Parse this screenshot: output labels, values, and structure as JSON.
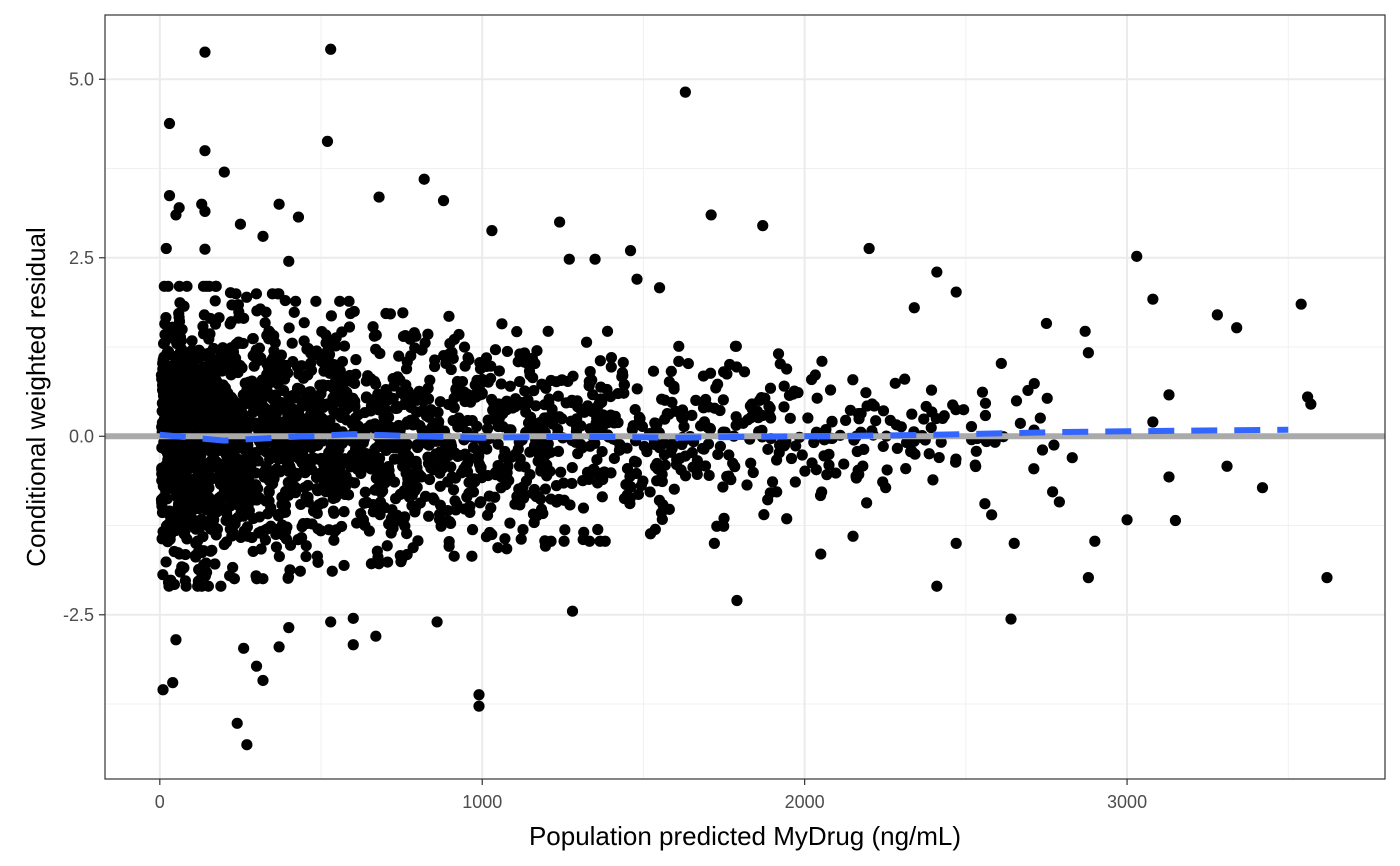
{
  "chart_data": {
    "type": "scatter",
    "title": "",
    "xlabel": "Population predicted MyDrug (ng/mL)",
    "ylabel": "Conditional weighted residual",
    "xlim": [
      -170,
      3800
    ],
    "ylim": [
      -4.8,
      5.9
    ],
    "x_ticks": [
      0,
      1000,
      2000,
      3000
    ],
    "x_tick_labels": [
      "0",
      "1000",
      "2000",
      "3000"
    ],
    "y_ticks": [
      5.0,
      2.5,
      0.0,
      -2.5
    ],
    "y_tick_labels": [
      "5.0",
      "2.5",
      "0.0",
      "-2.5"
    ],
    "grid": true,
    "theme": "bw",
    "points": [
      [
        140,
        5.38
      ],
      [
        530,
        5.42
      ],
      [
        1630,
        4.82
      ],
      [
        30,
        4.38
      ],
      [
        520,
        4.13
      ],
      [
        140,
        4.0
      ],
      [
        200,
        3.7
      ],
      [
        820,
        3.6
      ],
      [
        680,
        3.35
      ],
      [
        30,
        3.37
      ],
      [
        880,
        3.3
      ],
      [
        370,
        3.25
      ],
      [
        130,
        3.25
      ],
      [
        60,
        3.2
      ],
      [
        140,
        3.15
      ],
      [
        50,
        3.1
      ],
      [
        430,
        3.07
      ],
      [
        1710,
        3.1
      ],
      [
        250,
        2.97
      ],
      [
        1240,
        3.0
      ],
      [
        320,
        2.8
      ],
      [
        1870,
        2.95
      ],
      [
        1030,
        2.88
      ],
      [
        20,
        2.63
      ],
      [
        140,
        2.62
      ],
      [
        1460,
        2.6
      ],
      [
        2200,
        2.63
      ],
      [
        3030,
        2.52
      ],
      [
        400,
        2.45
      ],
      [
        1270,
        2.48
      ],
      [
        1350,
        2.48
      ],
      [
        2410,
        2.3
      ],
      [
        1480,
        2.2
      ],
      [
        1550,
        2.08
      ],
      [
        3080,
        1.92
      ],
      [
        2470,
        2.02
      ],
      [
        3540,
        1.85
      ],
      [
        2340,
        1.8
      ],
      [
        3280,
        1.7
      ],
      [
        3340,
        1.52
      ],
      [
        2750,
        1.58
      ],
      [
        2870,
        1.47
      ],
      [
        2880,
        1.17
      ],
      [
        2610,
        1.02
      ],
      [
        3130,
        0.58
      ],
      [
        3560,
        0.55
      ],
      [
        3570,
        0.45
      ],
      [
        3080,
        0.2
      ],
      [
        2790,
        -0.92
      ],
      [
        2830,
        -0.3
      ],
      [
        3000,
        -1.17
      ],
      [
        3150,
        -1.18
      ],
      [
        3130,
        -0.57
      ],
      [
        3310,
        -0.42
      ],
      [
        3420,
        -0.72
      ],
      [
        2880,
        -1.98
      ],
      [
        2900,
        -1.47
      ],
      [
        3620,
        -1.98
      ],
      [
        2640,
        -2.56
      ],
      [
        2410,
        -2.1
      ],
      [
        1790,
        -2.3
      ],
      [
        1280,
        -2.45
      ],
      [
        860,
        -2.6
      ],
      [
        530,
        -2.6
      ],
      [
        600,
        -2.55
      ],
      [
        400,
        -2.68
      ],
      [
        670,
        -2.8
      ],
      [
        600,
        -2.92
      ],
      [
        370,
        -2.95
      ],
      [
        260,
        -2.97
      ],
      [
        300,
        -3.22
      ],
      [
        320,
        -3.42
      ],
      [
        50,
        -2.85
      ],
      [
        40,
        -3.45
      ],
      [
        10,
        -3.55
      ],
      [
        990,
        -3.62
      ],
      [
        990,
        -3.78
      ],
      [
        240,
        -4.02
      ],
      [
        270,
        -4.32
      ],
      [
        1720,
        -1.5
      ],
      [
        2050,
        -1.65
      ],
      [
        2150,
        -1.4
      ],
      [
        2470,
        -1.5
      ],
      [
        2650,
        -1.5
      ],
      [
        2580,
        -1.1
      ]
    ],
    "point_color": "#000000",
    "reference_line": {
      "y": 0.0,
      "color": "#aaaaaa",
      "style": "solid"
    },
    "smooth_line": {
      "color": "#3366ff",
      "style": "dashed",
      "x": [
        0,
        200,
        400,
        600,
        800,
        1000,
        1200,
        1400,
        1600,
        1800,
        2000,
        2200,
        2400,
        2600,
        2800,
        3000,
        3200,
        3500
      ],
      "y": [
        0.02,
        -0.06,
        -0.01,
        0.03,
        0.0,
        -0.02,
        -0.01,
        -0.01,
        -0.02,
        -0.01,
        0.0,
        0.01,
        0.02,
        0.04,
        0.06,
        0.07,
        0.08,
        0.09
      ]
    },
    "cloud_bands": [
      {
        "x": [
          5,
          80
        ],
        "y": [
          -2.0,
          2.0
        ],
        "n": 340
      },
      {
        "x": [
          80,
          220
        ],
        "y": [
          -2.0,
          2.0
        ],
        "n": 420
      },
      {
        "x": [
          220,
          400
        ],
        "y": [
          -1.9,
          1.9
        ],
        "n": 360
      },
      {
        "x": [
          400,
          600
        ],
        "y": [
          -1.8,
          1.8
        ],
        "n": 300
      },
      {
        "x": [
          600,
          800
        ],
        "y": [
          -1.7,
          1.7
        ],
        "n": 230
      },
      {
        "x": [
          800,
          1000
        ],
        "y": [
          -1.6,
          1.6
        ],
        "n": 190
      },
      {
        "x": [
          1000,
          1200
        ],
        "y": [
          -1.5,
          1.5
        ],
        "n": 160
      },
      {
        "x": [
          1200,
          1400
        ],
        "y": [
          -1.4,
          1.4
        ],
        "n": 120
      },
      {
        "x": [
          1400,
          1600
        ],
        "y": [
          -1.3,
          1.3
        ],
        "n": 90
      },
      {
        "x": [
          1600,
          1800
        ],
        "y": [
          -1.2,
          1.2
        ],
        "n": 70
      },
      {
        "x": [
          1800,
          2000
        ],
        "y": [
          -1.1,
          1.1
        ],
        "n": 55
      },
      {
        "x": [
          2000,
          2200
        ],
        "y": [
          -1.0,
          1.0
        ],
        "n": 45
      },
      {
        "x": [
          2200,
          2400
        ],
        "y": [
          -1.0,
          1.0
        ],
        "n": 35
      },
      {
        "x": [
          2400,
          2600
        ],
        "y": [
          -0.9,
          0.9
        ],
        "n": 22
      },
      {
        "x": [
          2600,
          2800
        ],
        "y": [
          -0.8,
          0.8
        ],
        "n": 12
      }
    ]
  }
}
